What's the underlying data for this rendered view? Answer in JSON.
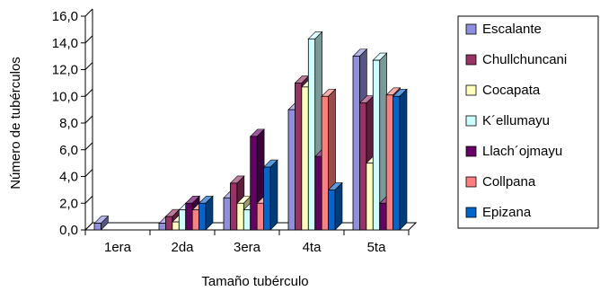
{
  "chart_data": {
    "type": "bar",
    "style": "3d-clustered",
    "categories": [
      "1era",
      "2da",
      "3era",
      "4ta",
      "5ta"
    ],
    "xlabel": "Tamaño tubérculo",
    "ylabel": "Número de tubérculos",
    "ylim": [
      0,
      16
    ],
    "yticks": [
      "0,0",
      "2,0",
      "4,0",
      "6,0",
      "8,0",
      "10,0",
      "12,0",
      "14,0",
      "16,0"
    ],
    "grid": false,
    "legend_position": "right",
    "series": [
      {
        "name": "Escalante",
        "color": "#8f8fe0",
        "values": [
          0.5,
          0.5,
          2.4,
          9.0,
          13.0
        ]
      },
      {
        "name": "Chullchuncani",
        "color": "#993366",
        "values": [
          0,
          1.0,
          3.5,
          11.0,
          9.5
        ]
      },
      {
        "name": "Cocapata",
        "color": "#ffffc0",
        "values": [
          0,
          0.6,
          2.0,
          10.7,
          5.0
        ]
      },
      {
        "name": "K´ellumayu",
        "color": "#ccffff",
        "values": [
          0,
          1.5,
          1.5,
          14.3,
          12.7
        ]
      },
      {
        "name": "Llach´ojmayu",
        "color": "#660066",
        "values": [
          0,
          2.0,
          7.0,
          5.5,
          2.0
        ]
      },
      {
        "name": "Collpana",
        "color": "#ff7f7f",
        "values": [
          0,
          1.5,
          2.0,
          10.0,
          10.1
        ]
      },
      {
        "name": "Epizana",
        "color": "#0066cc",
        "values": [
          0,
          2.0,
          4.7,
          3.0,
          10.0
        ]
      }
    ]
  }
}
